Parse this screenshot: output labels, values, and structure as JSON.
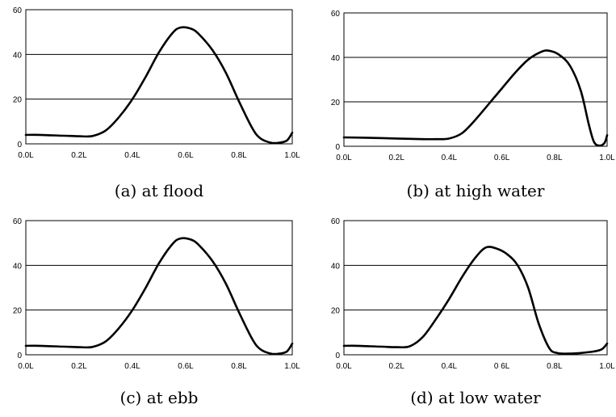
{
  "chart_data": [
    {
      "type": "line",
      "caption": "(a) at flood",
      "x_ticks": [
        "0.0L",
        "0.2L",
        "0.4L",
        "0.6L",
        "0.8L",
        "1.0L"
      ],
      "y_ticks": [
        "0",
        "20",
        "40",
        "60"
      ],
      "ylim": [
        0,
        60
      ],
      "xlim": [
        0,
        1
      ],
      "gridlines_y": [
        20,
        40
      ],
      "series": [
        {
          "x": [
            0,
            0.05,
            0.1,
            0.15,
            0.2,
            0.25,
            0.3,
            0.35,
            0.4,
            0.45,
            0.5,
            0.55,
            0.58,
            0.62,
            0.65,
            0.7,
            0.75,
            0.8,
            0.85,
            0.88,
            0.92,
            0.95,
            0.98,
            1.0
          ],
          "y": [
            4.0,
            4.0,
            3.8,
            3.6,
            3.4,
            3.5,
            6.0,
            12.0,
            20.0,
            30.0,
            41.0,
            49.5,
            52.0,
            51.5,
            49.0,
            42.0,
            32.0,
            19.0,
            7.0,
            2.5,
            0.5,
            0.5,
            1.5,
            5.0
          ]
        }
      ]
    },
    {
      "type": "line",
      "caption": "(b) at high water",
      "x_ticks": [
        "0.0L",
        "0.2L",
        "0.4L",
        "0.6L",
        "0.8L",
        "1.0L"
      ],
      "y_ticks": [
        "0",
        "20",
        "40",
        "60"
      ],
      "ylim": [
        0,
        60
      ],
      "xlim": [
        0,
        1
      ],
      "gridlines_y": [
        20,
        40
      ],
      "series": [
        {
          "x": [
            0,
            0.1,
            0.2,
            0.3,
            0.35,
            0.4,
            0.45,
            0.5,
            0.55,
            0.6,
            0.65,
            0.7,
            0.75,
            0.78,
            0.82,
            0.86,
            0.9,
            0.93,
            0.95,
            0.97,
            0.99,
            1.0
          ],
          "y": [
            4.0,
            3.8,
            3.5,
            3.2,
            3.2,
            3.5,
            6.0,
            12.0,
            19.0,
            26.0,
            33.0,
            39.0,
            42.5,
            43.0,
            41.0,
            36.0,
            25.0,
            10.0,
            2.0,
            0.3,
            1.5,
            5.0
          ]
        }
      ]
    },
    {
      "type": "line",
      "caption": "(c) at ebb",
      "x_ticks": [
        "0.0L",
        "0.2L",
        "0.4L",
        "0.6L",
        "0.8L",
        "1.0L"
      ],
      "y_ticks": [
        "0",
        "20",
        "40",
        "60"
      ],
      "ylim": [
        0,
        60
      ],
      "xlim": [
        0,
        1
      ],
      "gridlines_y": [
        20,
        40
      ],
      "series": [
        {
          "x": [
            0,
            0.05,
            0.1,
            0.15,
            0.2,
            0.25,
            0.3,
            0.35,
            0.4,
            0.45,
            0.5,
            0.55,
            0.58,
            0.62,
            0.65,
            0.7,
            0.75,
            0.8,
            0.85,
            0.88,
            0.92,
            0.95,
            0.98,
            1.0
          ],
          "y": [
            4.0,
            4.0,
            3.8,
            3.6,
            3.4,
            3.5,
            6.0,
            12.0,
            20.0,
            30.0,
            41.0,
            49.5,
            52.0,
            51.5,
            49.0,
            42.0,
            32.0,
            19.0,
            7.0,
            2.5,
            0.5,
            0.5,
            1.5,
            5.0
          ]
        }
      ]
    },
    {
      "type": "line",
      "caption": "(d) at low water",
      "x_ticks": [
        "0.0L",
        "0.2L",
        "0.4L",
        "0 6L",
        "0.8L",
        "1.0L"
      ],
      "y_ticks": [
        "0",
        "20",
        "40",
        "60"
      ],
      "ylim": [
        0,
        60
      ],
      "xlim": [
        0,
        1
      ],
      "gridlines_y": [
        20,
        40
      ],
      "series": [
        {
          "x": [
            0,
            0.05,
            0.1,
            0.15,
            0.2,
            0.25,
            0.3,
            0.35,
            0.4,
            0.45,
            0.5,
            0.54,
            0.58,
            0.62,
            0.66,
            0.7,
            0.74,
            0.78,
            0.81,
            0.85,
            0.9,
            0.95,
            0.98,
            1.0
          ],
          "y": [
            4.0,
            4.0,
            3.8,
            3.6,
            3.4,
            3.8,
            8.0,
            16.0,
            25.0,
            35.0,
            43.5,
            48.0,
            47.5,
            45.0,
            40.0,
            30.0,
            14.0,
            3.0,
            0.8,
            0.5,
            0.8,
            1.5,
            2.5,
            5.0
          ]
        }
      ]
    }
  ]
}
